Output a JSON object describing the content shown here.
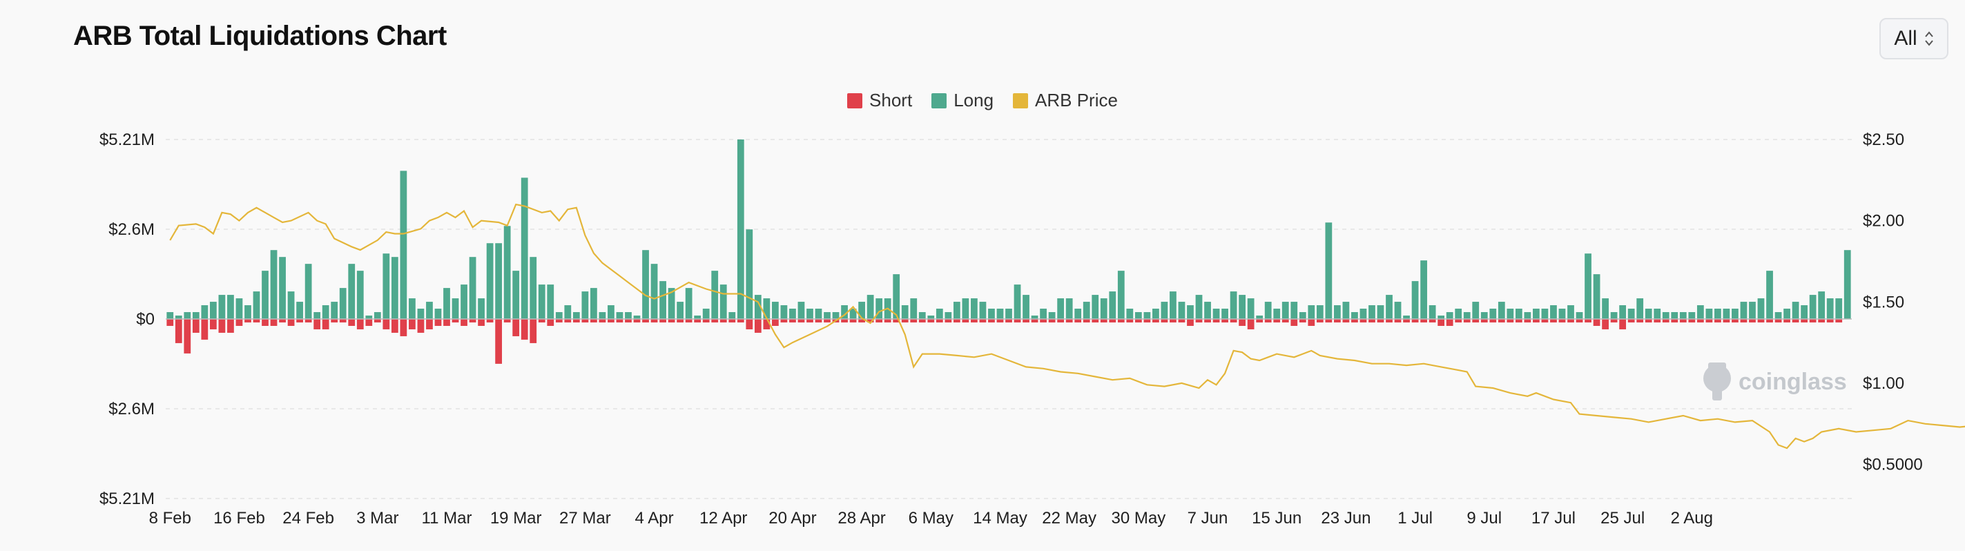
{
  "header": {
    "title": "ARB Total Liquidations Chart",
    "range_value": "All"
  },
  "legend": [
    {
      "label": "Short",
      "color": "#e0404a"
    },
    {
      "label": "Long",
      "color": "#4ea98e"
    },
    {
      "label": "ARB Price",
      "color": "#e4b63a"
    }
  ],
  "watermark": "coinglass",
  "chart_data": {
    "type": "bar",
    "title": "ARB Total Liquidations Chart",
    "legend_position": "top-center",
    "grid": true,
    "left_axis_ticks": [
      "$5.21M",
      "$2.6M",
      "$0",
      "$2.6M",
      "$5.21M"
    ],
    "right_axis_ticks": [
      "$2.50",
      "$2.00",
      "$1.50",
      "$1.00",
      "$0.5000"
    ],
    "ylim_left_millions": [
      -5.21,
      5.21
    ],
    "ylim_right": [
      0.29,
      2.5
    ],
    "x_tick_labels": [
      "8 Feb",
      "16 Feb",
      "24 Feb",
      "3 Mar",
      "11 Mar",
      "19 Mar",
      "27 Mar",
      "4 Apr",
      "12 Apr",
      "20 Apr",
      "28 Apr",
      "6 May",
      "14 May",
      "22 May",
      "30 May",
      "7 Jun",
      "15 Jun",
      "23 Jun",
      "1 Jul",
      "9 Jul",
      "17 Jul",
      "25 Jul",
      "2 Aug"
    ],
    "long_millions": [
      0.2,
      0.1,
      0.2,
      0.2,
      0.4,
      0.5,
      0.7,
      0.7,
      0.6,
      0.4,
      0.8,
      1.4,
      2.0,
      1.8,
      0.8,
      0.5,
      1.6,
      0.2,
      0.4,
      0.5,
      0.9,
      1.6,
      1.4,
      0.1,
      0.2,
      1.9,
      1.8,
      4.3,
      0.6,
      0.3,
      0.5,
      0.3,
      0.9,
      0.6,
      1.0,
      1.8,
      0.6,
      2.2,
      2.2,
      2.7,
      1.4,
      4.1,
      1.8,
      1.0,
      1.0,
      0.2,
      0.4,
      0.2,
      0.8,
      0.9,
      0.2,
      0.4,
      0.2,
      0.2,
      0.1,
      2.0,
      1.6,
      1.1,
      0.9,
      0.5,
      0.9,
      0.1,
      0.3,
      1.4,
      1.0,
      0.2,
      5.21,
      2.6,
      0.7,
      0.6,
      0.5,
      0.4,
      0.3,
      0.5,
      0.3,
      0.3,
      0.2,
      0.2,
      0.4,
      0.3,
      0.5,
      0.7,
      0.6,
      0.6,
      1.3,
      0.4,
      0.6,
      0.2,
      0.1,
      0.3,
      0.2,
      0.5,
      0.6,
      0.6,
      0.5,
      0.3,
      0.3,
      0.3,
      1.0,
      0.7,
      0.1,
      0.3,
      0.2,
      0.6,
      0.6,
      0.3,
      0.5,
      0.7,
      0.6,
      0.8,
      1.4,
      0.3,
      0.2,
      0.2,
      0.3,
      0.5,
      0.8,
      0.5,
      0.4,
      0.7,
      0.5,
      0.3,
      0.3,
      0.8,
      0.7,
      0.6,
      0.1,
      0.5,
      0.3,
      0.5,
      0.5,
      0.2,
      0.4,
      0.4,
      2.8,
      0.4,
      0.5,
      0.2,
      0.3,
      0.4,
      0.4,
      0.7,
      0.5,
      0.1,
      1.1,
      1.7,
      0.4,
      0.1,
      0.2,
      0.3,
      0.2,
      0.5,
      0.2,
      0.3,
      0.5,
      0.3,
      0.3,
      0.2,
      0.3,
      0.3,
      0.4,
      0.3,
      0.4,
      0.2,
      1.9,
      1.3,
      0.6,
      0.2,
      0.4,
      0.3,
      0.6,
      0.3,
      0.3,
      0.2,
      0.2,
      0.2,
      0.2,
      0.4,
      0.3,
      0.3,
      0.3,
      0.3,
      0.5,
      0.5,
      0.6,
      1.4,
      0.2,
      0.3,
      0.5,
      0.4,
      0.7,
      0.8,
      0.6,
      0.6,
      2.0
    ],
    "short_millions": [
      0.2,
      0.7,
      1.0,
      0.4,
      0.6,
      0.3,
      0.4,
      0.4,
      0.2,
      0.1,
      0.1,
      0.2,
      0.2,
      0.1,
      0.2,
      0.1,
      0.1,
      0.3,
      0.3,
      0.1,
      0.1,
      0.2,
      0.3,
      0.2,
      0.1,
      0.3,
      0.4,
      0.5,
      0.3,
      0.4,
      0.3,
      0.2,
      0.2,
      0.1,
      0.2,
      0.1,
      0.2,
      0.1,
      1.3,
      0.1,
      0.5,
      0.6,
      0.7,
      0.1,
      0.2,
      0.1,
      0.1,
      0.1,
      0.1,
      0.1,
      0.1,
      0.1,
      0.1,
      0.1,
      0.1,
      0.1,
      0.1,
      0.1,
      0.1,
      0.1,
      0.1,
      0.1,
      0.1,
      0.1,
      0.1,
      0.1,
      0.1,
      0.3,
      0.4,
      0.3,
      0.2,
      0.1,
      0.1,
      0.1,
      0.1,
      0.1,
      0.1,
      0.1,
      0.1,
      0.1,
      0.1,
      0.1,
      0.1,
      0.1,
      0.1,
      0.1,
      0.1,
      0.1,
      0.1,
      0.1,
      0.1,
      0.1,
      0.1,
      0.1,
      0.1,
      0.1,
      0.1,
      0.1,
      0.1,
      0.1,
      0.1,
      0.1,
      0.1,
      0.1,
      0.1,
      0.1,
      0.1,
      0.1,
      0.1,
      0.1,
      0.1,
      0.1,
      0.1,
      0.1,
      0.1,
      0.1,
      0.1,
      0.1,
      0.2,
      0.1,
      0.1,
      0.1,
      0.1,
      0.1,
      0.2,
      0.3,
      0.1,
      0.1,
      0.1,
      0.1,
      0.2,
      0.1,
      0.2,
      0.1,
      0.1,
      0.1,
      0.1,
      0.1,
      0.1,
      0.1,
      0.1,
      0.1,
      0.1,
      0.1,
      0.1,
      0.1,
      0.1,
      0.2,
      0.2,
      0.1,
      0.1,
      0.1,
      0.1,
      0.1,
      0.1,
      0.1,
      0.1,
      0.1,
      0.1,
      0.1,
      0.1,
      0.1,
      0.1,
      0.1,
      0.1,
      0.2,
      0.3,
      0.1,
      0.3,
      0.1,
      0.1,
      0.1,
      0.1,
      0.1,
      0.1,
      0.1,
      0.1,
      0.1,
      0.1,
      0.1,
      0.1,
      0.1,
      0.1,
      0.1,
      0.1,
      0.1,
      0.1,
      0.1,
      0.1,
      0.1,
      0.1,
      0.1,
      0.1,
      0.1
    ],
    "price_points": [
      [
        0,
        1.88
      ],
      [
        1,
        1.97
      ],
      [
        3,
        1.98
      ],
      [
        4,
        1.96
      ],
      [
        5,
        1.92
      ],
      [
        6,
        2.05
      ],
      [
        7,
        2.04
      ],
      [
        8,
        2.0
      ],
      [
        9,
        2.05
      ],
      [
        10,
        2.08
      ],
      [
        12,
        2.02
      ],
      [
        13,
        1.99
      ],
      [
        14,
        2.0
      ],
      [
        16,
        2.05
      ],
      [
        17,
        2.0
      ],
      [
        18,
        1.98
      ],
      [
        19,
        1.89
      ],
      [
        21,
        1.84
      ],
      [
        22,
        1.82
      ],
      [
        24,
        1.88
      ],
      [
        25,
        1.93
      ],
      [
        26,
        1.92
      ],
      [
        27,
        1.92
      ],
      [
        29,
        1.95
      ],
      [
        30,
        2.0
      ],
      [
        31,
        2.02
      ],
      [
        32,
        2.05
      ],
      [
        33,
        2.02
      ],
      [
        34,
        2.06
      ],
      [
        35,
        1.96
      ],
      [
        36,
        2.0
      ],
      [
        38,
        1.99
      ],
      [
        39,
        1.97
      ],
      [
        40,
        2.1
      ],
      [
        41,
        2.09
      ],
      [
        43,
        2.05
      ],
      [
        44,
        2.06
      ],
      [
        45,
        2.0
      ],
      [
        46,
        2.07
      ],
      [
        47,
        2.08
      ],
      [
        48,
        1.91
      ],
      [
        49,
        1.8
      ],
      [
        50,
        1.74
      ],
      [
        52,
        1.66
      ],
      [
        53,
        1.62
      ],
      [
        54,
        1.58
      ],
      [
        55,
        1.54
      ],
      [
        56,
        1.52
      ],
      [
        58,
        1.56
      ],
      [
        60,
        1.62
      ],
      [
        62,
        1.58
      ],
      [
        64,
        1.55
      ],
      [
        66,
        1.55
      ],
      [
        68,
        1.5
      ],
      [
        70,
        1.3
      ],
      [
        71,
        1.22
      ],
      [
        72,
        1.25
      ],
      [
        74,
        1.3
      ],
      [
        76,
        1.35
      ],
      [
        78,
        1.42
      ],
      [
        79,
        1.47
      ],
      [
        80,
        1.4
      ],
      [
        81,
        1.37
      ],
      [
        82,
        1.44
      ],
      [
        83,
        1.46
      ],
      [
        84,
        1.42
      ],
      [
        85,
        1.3
      ],
      [
        86,
        1.1
      ],
      [
        87,
        1.18
      ],
      [
        89,
        1.18
      ],
      [
        91,
        1.17
      ],
      [
        93,
        1.16
      ],
      [
        95,
        1.18
      ],
      [
        97,
        1.14
      ],
      [
        99,
        1.1
      ],
      [
        101,
        1.09
      ],
      [
        103,
        1.07
      ],
      [
        105,
        1.06
      ],
      [
        107,
        1.04
      ],
      [
        109,
        1.02
      ],
      [
        111,
        1.03
      ],
      [
        113,
        0.99
      ],
      [
        115,
        0.98
      ],
      [
        117,
        1.0
      ],
      [
        119,
        0.97
      ],
      [
        120,
        1.02
      ],
      [
        121,
        0.99
      ],
      [
        122,
        1.06
      ],
      [
        123,
        1.2
      ],
      [
        124,
        1.19
      ],
      [
        125,
        1.15
      ],
      [
        126,
        1.14
      ],
      [
        127,
        1.16
      ],
      [
        128,
        1.18
      ],
      [
        130,
        1.16
      ],
      [
        131,
        1.18
      ],
      [
        132,
        1.2
      ],
      [
        133,
        1.17
      ],
      [
        135,
        1.15
      ],
      [
        137,
        1.14
      ],
      [
        139,
        1.12
      ],
      [
        141,
        1.12
      ],
      [
        143,
        1.11
      ],
      [
        145,
        1.12
      ],
      [
        147,
        1.1
      ],
      [
        149,
        1.08
      ],
      [
        150,
        1.07
      ],
      [
        151,
        0.98
      ],
      [
        153,
        0.97
      ],
      [
        155,
        0.94
      ],
      [
        157,
        0.92
      ],
      [
        158,
        0.94
      ],
      [
        160,
        0.9
      ],
      [
        162,
        0.88
      ],
      [
        163,
        0.81
      ],
      [
        165,
        0.8
      ],
      [
        167,
        0.79
      ],
      [
        169,
        0.78
      ],
      [
        171,
        0.76
      ],
      [
        173,
        0.78
      ],
      [
        175,
        0.8
      ],
      [
        177,
        0.77
      ],
      [
        179,
        0.78
      ],
      [
        181,
        0.76
      ],
      [
        183,
        0.77
      ],
      [
        185,
        0.7
      ],
      [
        186,
        0.62
      ],
      [
        187,
        0.6
      ],
      [
        188,
        0.66
      ],
      [
        189,
        0.64
      ],
      [
        190,
        0.66
      ],
      [
        191,
        0.7
      ],
      [
        193,
        0.72
      ],
      [
        195,
        0.7
      ],
      [
        197,
        0.71
      ],
      [
        199,
        0.72
      ],
      [
        201,
        0.77
      ],
      [
        203,
        0.75
      ],
      [
        205,
        0.74
      ],
      [
        207,
        0.73
      ],
      [
        209,
        0.74
      ],
      [
        211,
        0.76
      ],
      [
        212,
        0.74
      ],
      [
        213,
        0.72
      ],
      [
        215,
        0.71
      ],
      [
        217,
        0.73
      ],
      [
        219,
        0.7
      ],
      [
        221,
        0.68
      ],
      [
        223,
        0.66
      ],
      [
        225,
        0.66
      ],
      [
        226,
        0.6
      ],
      [
        227,
        0.48
      ]
    ]
  }
}
